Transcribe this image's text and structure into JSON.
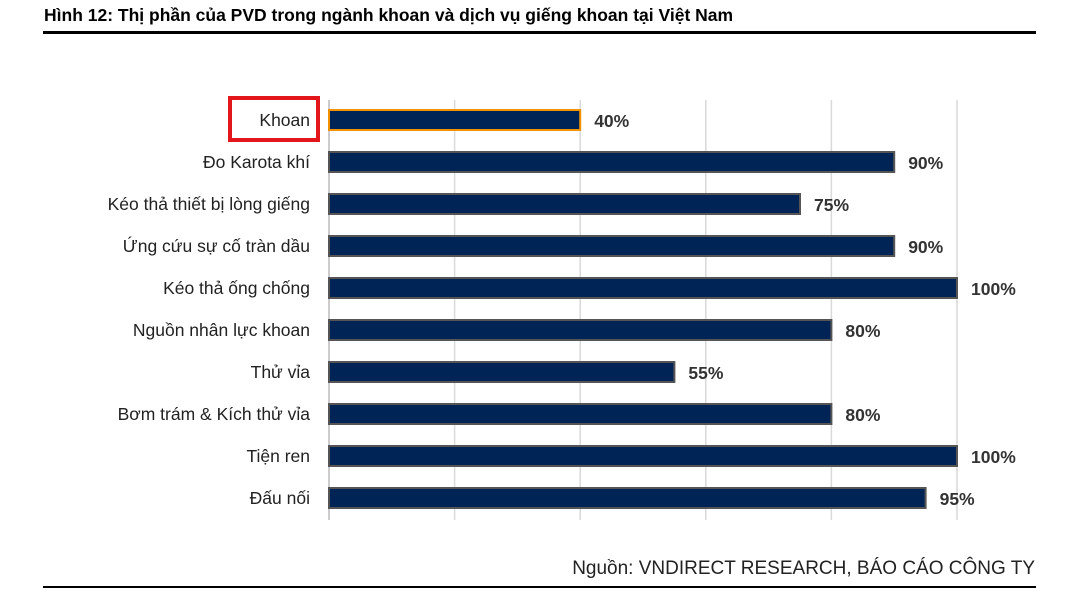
{
  "title": "Hình 12: Thị phần của PVD trong ngành khoan và dịch vụ giếng khoan tại Việt Nam",
  "source": "Nguồn: VNDIRECT RESEARCH, BÁO CÁO CÔNG TY",
  "colors": {
    "bar": "#002456",
    "bar_border": "#555555",
    "highlight_border": "#f39200",
    "highlight_box": "#e3161b"
  },
  "chart_data": {
    "type": "bar",
    "orientation": "horizontal",
    "title": "Hình 12: Thị phần của PVD trong ngành khoan và dịch vụ giếng khoan tại Việt Nam",
    "categories": [
      "Khoan",
      "Đo Karota khí",
      "Kéo thả thiết bị lòng giếng",
      "Ứng cứu sự cố tràn dầu",
      "Kéo thả ống chống",
      "Nguồn nhân lực khoan",
      "Thử vỉa",
      "Bơm trám & Kích thử vỉa",
      "Tiện ren",
      "Đấu nối"
    ],
    "values": [
      40,
      90,
      75,
      90,
      100,
      80,
      55,
      80,
      100,
      95
    ],
    "data_labels": [
      "40%",
      "90%",
      "75%",
      "90%",
      "100%",
      "80%",
      "55%",
      "80%",
      "100%",
      "95%"
    ],
    "highlighted": "Khoan",
    "xlim": [
      0,
      100
    ],
    "grid_step": 20,
    "grid": true
  }
}
